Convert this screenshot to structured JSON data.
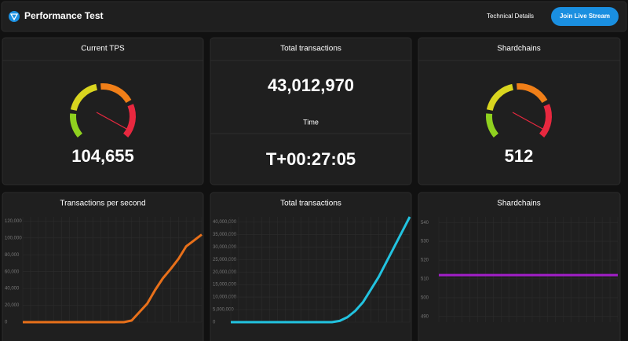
{
  "header": {
    "title": "Performance Test",
    "link": "Technical Details",
    "button": "Join Live Stream"
  },
  "stats": [
    {
      "title": "Current TPS",
      "value": "104,655"
    },
    {
      "title": "Total transactions",
      "value": "43,012,970"
    },
    {
      "title": "Time",
      "value": "T+00:27:05"
    },
    {
      "title": "Shardchains",
      "value": "512"
    }
  ],
  "chart_data": [
    {
      "type": "line",
      "title": "Transactions per second",
      "color": "#e8701a",
      "categories": [
        null,
        null,
        null,
        null,
        null,
        null,
        null,
        null,
        null,
        null,
        null,
        null,
        null,
        null,
        null,
        null,
        null,
        null,
        null,
        null,
        null,
        null,
        null,
        null
      ],
      "values": [
        0,
        0,
        0,
        0,
        0,
        0,
        0,
        0,
        0,
        0,
        0,
        0,
        0,
        0,
        2000,
        12000,
        22000,
        38000,
        52000,
        63000,
        75000,
        90000,
        97000,
        104000
      ],
      "ylim": [
        0,
        125000
      ],
      "yticks": [
        {
          "value": 0,
          "label": "0"
        },
        {
          "value": 20000,
          "label": "20,000"
        },
        {
          "value": 40000,
          "label": "40,000"
        },
        {
          "value": 60000,
          "label": "60,000"
        },
        {
          "value": 80000,
          "label": "80,000"
        },
        {
          "value": 100000,
          "label": "100,000"
        },
        {
          "value": 120000,
          "label": "120,000"
        }
      ],
      "grid": true
    },
    {
      "type": "line",
      "title": "Total transactions",
      "color": "#22c3e0",
      "categories": [
        null,
        null,
        null,
        null,
        null,
        null,
        null,
        null,
        null,
        null,
        null,
        null,
        null,
        null,
        null,
        null,
        null,
        null,
        null,
        null,
        null,
        null,
        null,
        null
      ],
      "values": [
        0,
        0,
        0,
        0,
        0,
        0,
        0,
        0,
        0,
        0,
        0,
        0,
        0,
        0,
        500000,
        2000000,
        4500000,
        8000000,
        13000000,
        18000000,
        24000000,
        30000000,
        36000000,
        42000000
      ],
      "ylim": [
        0,
        42000000
      ],
      "yticks": [
        {
          "value": 0,
          "label": "0"
        },
        {
          "value": 5000000,
          "label": "5,000,000"
        },
        {
          "value": 10000000,
          "label": "10,000,000"
        },
        {
          "value": 15000000,
          "label": "15,000,000"
        },
        {
          "value": 20000000,
          "label": "20,000,000"
        },
        {
          "value": 25000000,
          "label": "25,000,000"
        },
        {
          "value": 30000000,
          "label": "30,000,000"
        },
        {
          "value": 35000000,
          "label": "35,000,000"
        },
        {
          "value": 40000000,
          "label": "40,000,000"
        }
      ],
      "grid": true
    },
    {
      "type": "line",
      "title": "Shardchains",
      "color": "#a21fc9",
      "categories": [
        null,
        null,
        null,
        null,
        null,
        null,
        null,
        null,
        null,
        null,
        null,
        null,
        null,
        null,
        null,
        null,
        null,
        null,
        null,
        null,
        null,
        null,
        null,
        null
      ],
      "values": [
        512,
        512,
        512,
        512,
        512,
        512,
        512,
        512,
        512,
        512,
        512,
        512,
        512,
        512,
        512,
        512,
        512,
        512,
        512,
        512,
        512,
        512,
        512,
        512
      ],
      "ylim": [
        487,
        543
      ],
      "yticks": [
        490,
        500,
        510,
        520,
        530,
        540
      ],
      "grid": true
    }
  ]
}
